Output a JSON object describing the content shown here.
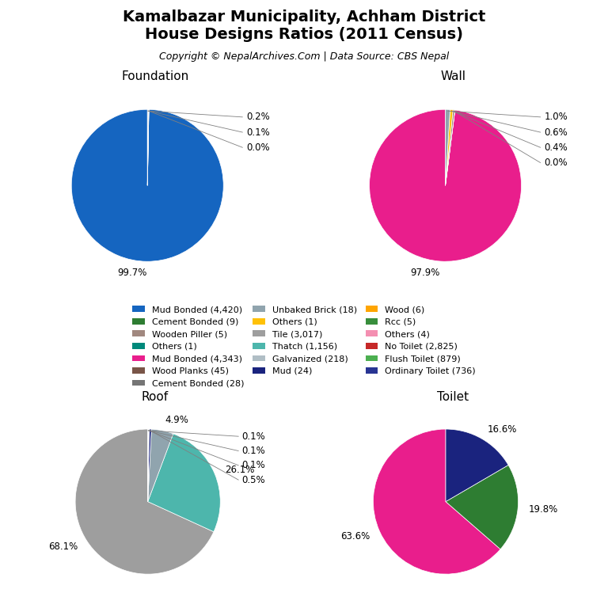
{
  "title": "Kamalbazar Municipality, Achham District\nHouse Designs Ratios (2011 Census)",
  "subtitle": "Copyright © NepalArchives.Com | Data Source: CBS Nepal",
  "legend": "center",
  "legend_entries": [
    {
      "label": "Mud Bonded (4,420)",
      "color": "#1565C0"
    },
    {
      "label": "Cement Bonded (9)",
      "color": "#2E7D32"
    },
    {
      "label": "Wooden Piller (5)",
      "color": "#A1887F"
    },
    {
      "label": "Others (1)",
      "color": "#00897B"
    },
    {
      "label": "Mud Bonded (4,343)",
      "color": "#E91E8C"
    },
    {
      "label": "Wood Planks (45)",
      "color": "#795548"
    },
    {
      "label": "Cement Bonded (28)",
      "color": "#757575"
    },
    {
      "label": "Unbaked Brick (18)",
      "color": "#90A4AE"
    },
    {
      "label": "Others (1)",
      "color": "#FFC107"
    },
    {
      "label": "Tile (3,017)",
      "color": "#9E9E9E"
    },
    {
      "label": "Thatch (1,156)",
      "color": "#4DB6AC"
    },
    {
      "label": "Galvanized (218)",
      "color": "#B0BEC5"
    },
    {
      "label": "Mud (24)",
      "color": "#1A237E"
    },
    {
      "label": "Wood (6)",
      "color": "#FFA500"
    },
    {
      "label": "Rcc (5)",
      "color": "#388E3C"
    },
    {
      "label": "Others (4)",
      "color": "#F48FB1"
    },
    {
      "label": "No Toilet (2,825)",
      "color": "#C62828"
    },
    {
      "label": "Flush Toilet (879)",
      "color": "#4CAF50"
    },
    {
      "label": "Ordinary Toilet (736)",
      "color": "#283593"
    }
  ],
  "chart_data": [
    {
      "type": "pie",
      "title": "Foundation",
      "values": [
        99.7,
        0.02,
        0.1,
        0.18
      ],
      "value_labels": [
        "99.7%",
        "0.0%",
        "0.1%",
        "0.2%"
      ],
      "colors": [
        "#1565C0",
        "#00897B",
        "#9E9E9E",
        "#B0BEC5"
      ],
      "data_labels": true
    },
    {
      "type": "pie",
      "title": "Wall",
      "values": [
        97.9,
        0.02,
        0.4,
        0.6,
        1.0
      ],
      "value_labels": [
        "97.9%",
        "0.0%",
        "0.4%",
        "0.6%",
        "1.0%"
      ],
      "colors": [
        "#E91E8C",
        "#00897B",
        "#A1887F",
        "#FFC107",
        "#90A4AE"
      ],
      "data_labels": true
    },
    {
      "type": "pie",
      "title": "Roof",
      "values": [
        68.1,
        26.1,
        4.9,
        0.5,
        0.1,
        0.1,
        0.1
      ],
      "value_labels": [
        "68.1%",
        "26.1%",
        "4.9%",
        "0.5%",
        "0.1%",
        "0.1%",
        "0.1%"
      ],
      "colors": [
        "#9E9E9E",
        "#4DB6AC",
        "#90A4AE",
        "#1A237E",
        "#212121",
        "#757575",
        "#CFD8DC"
      ],
      "data_labels": true
    },
    {
      "type": "pie",
      "title": "Toilet",
      "values": [
        63.6,
        19.8,
        16.6
      ],
      "value_labels": [
        "63.6%",
        "19.8%",
        "16.6%"
      ],
      "colors": [
        "#E91E8C",
        "#2E7D32",
        "#1A237E"
      ],
      "data_labels": true
    }
  ]
}
